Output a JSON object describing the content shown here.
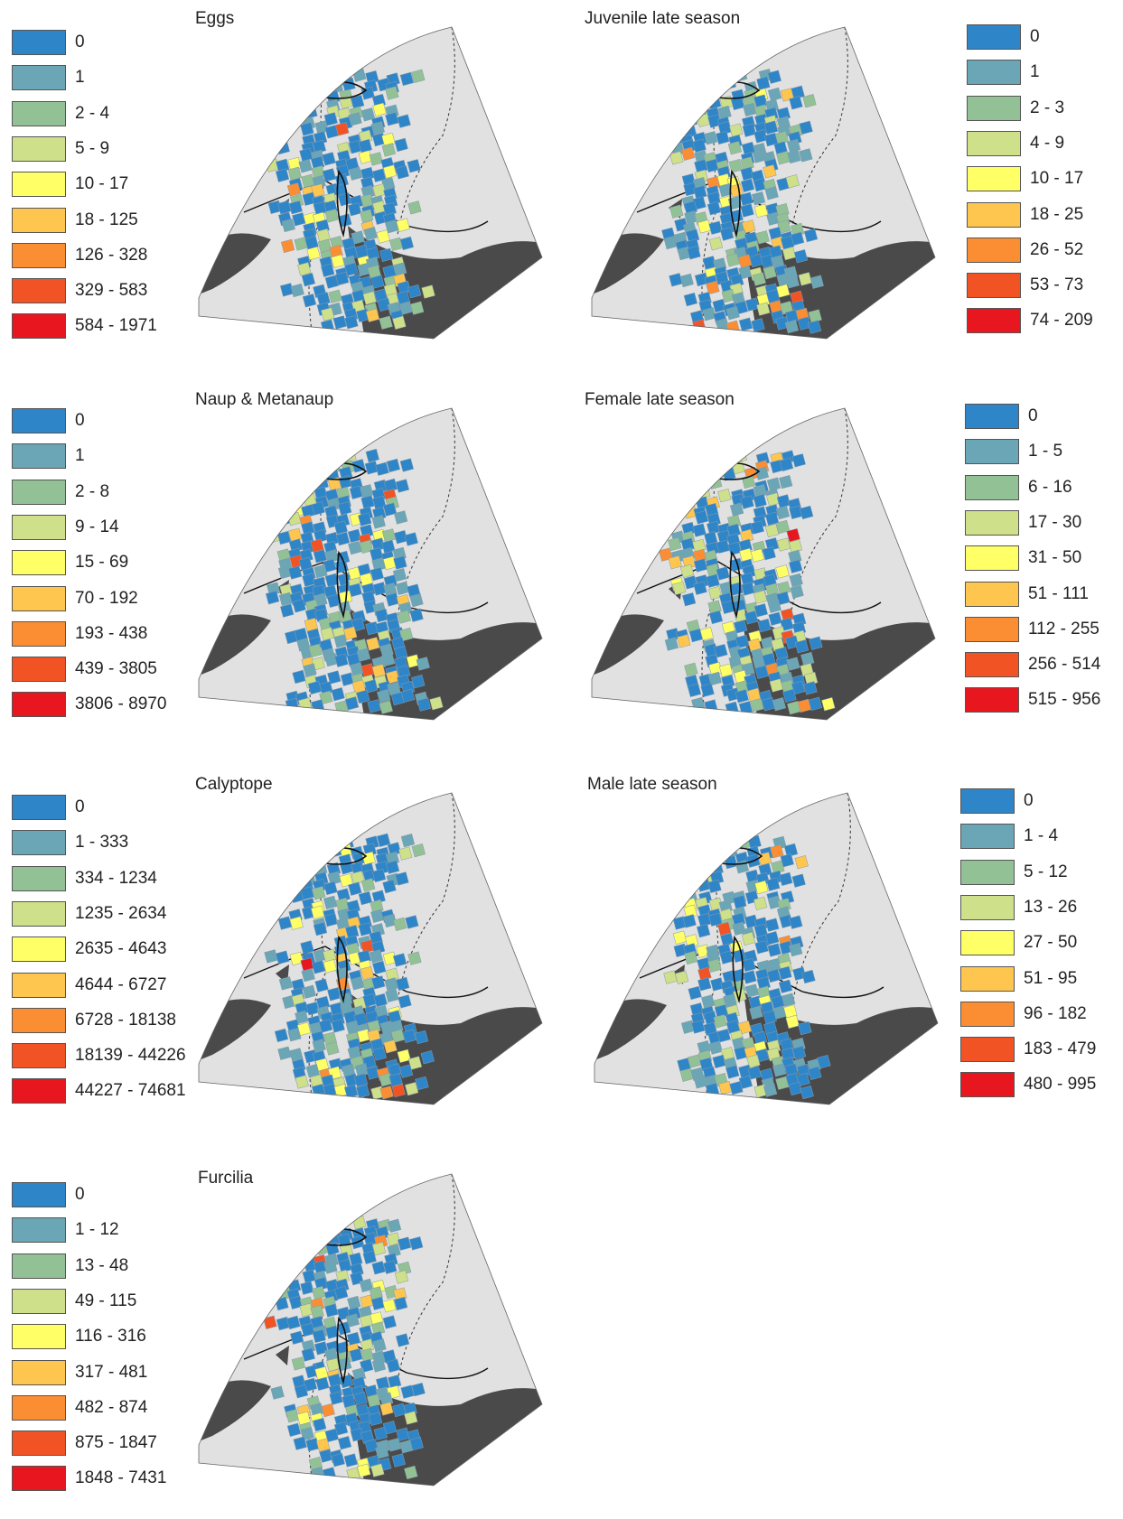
{
  "colors": {
    "class_colors": [
      "#2e86c8",
      "#6aa6b5",
      "#93c196",
      "#cfe08a",
      "#ffff66",
      "#ffc64f",
      "#fb8e33",
      "#f25325",
      "#e8161e"
    ],
    "land": "#4a4a4a",
    "ocean": "#e1e1e1",
    "outline": "#111111"
  },
  "panels": [
    {
      "title": "Eggs",
      "legend": [
        "0",
        "1",
        "2 - 4",
        "5 - 9",
        "10 - 17",
        "18 - 125",
        "126 - 328",
        "329 - 583",
        "584 - 1971"
      ]
    },
    {
      "title": "Juvenile late season",
      "legend": [
        "0",
        "1",
        "2 - 3",
        "4 - 9",
        "10 - 17",
        "18 - 25",
        "26 - 52",
        "53 - 73",
        "74 - 209"
      ]
    },
    {
      "title": "Naup & Metanaup",
      "legend": [
        "0",
        "1",
        "2 - 8",
        "9 - 14",
        "15 - 69",
        "70 - 192",
        "193 - 438",
        "439 - 3805",
        "3806 - 8970"
      ]
    },
    {
      "title": "Female late season",
      "legend": [
        "0",
        "1 - 5",
        "6 - 16",
        "17 - 30",
        "31 - 50",
        "51 - 111",
        "112 - 255",
        "256 - 514",
        "515 - 956"
      ]
    },
    {
      "title": "Calyptope",
      "legend": [
        "0",
        "1 - 333",
        "334 - 1234",
        "1235 - 2634",
        "2635 - 4643",
        "4644 - 6727",
        "6728 - 18138",
        "18139 - 44226",
        "44227 - 74681"
      ]
    },
    {
      "title": "Male late season",
      "legend": [
        "0",
        "1 - 4",
        "5 - 12",
        "13 - 26",
        "27 - 50",
        "51 - 95",
        "96 - 182",
        "183 - 479",
        "480 - 995"
      ]
    },
    {
      "title": "Furcilia",
      "legend": [
        "0",
        "1 - 12",
        "13 - 48",
        "49 - 115",
        "116 - 316",
        "317 - 481",
        "482 - 874",
        "875 - 1847",
        "1848 - 7431"
      ]
    }
  ]
}
